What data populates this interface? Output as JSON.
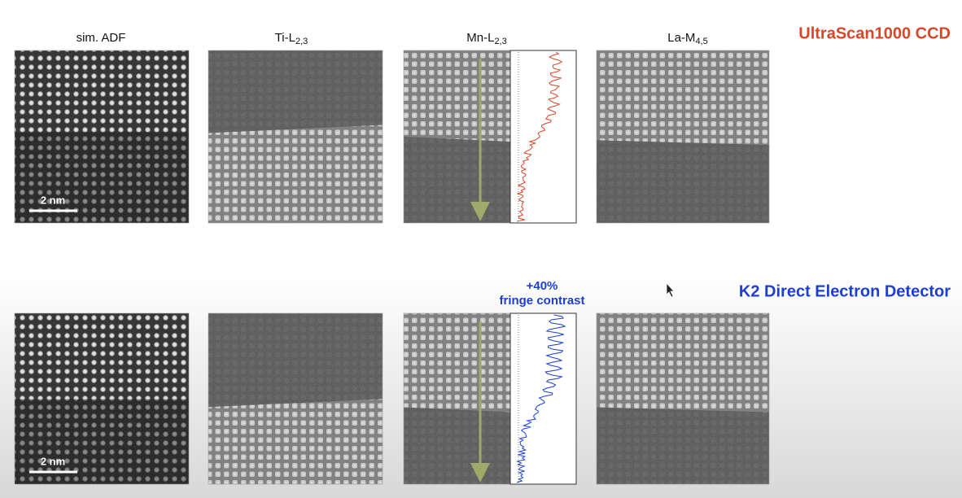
{
  "slide": {
    "columns": [
      {
        "label": "sim. ADF"
      },
      {
        "label": "Ti-L",
        "subscript": "2,3"
      },
      {
        "label": "Mn-L",
        "subscript": "2,3"
      },
      {
        "label": "La-M",
        "subscript": "4,5"
      }
    ],
    "rows": [
      {
        "detector": "UltraScan1000 CCD",
        "scale_bar": "2 nm"
      },
      {
        "detector": "K2 Direct Electron Detector",
        "scale_bar": "2 nm",
        "annotation": [
          "+40%",
          "fringe contrast"
        ]
      }
    ]
  }
}
